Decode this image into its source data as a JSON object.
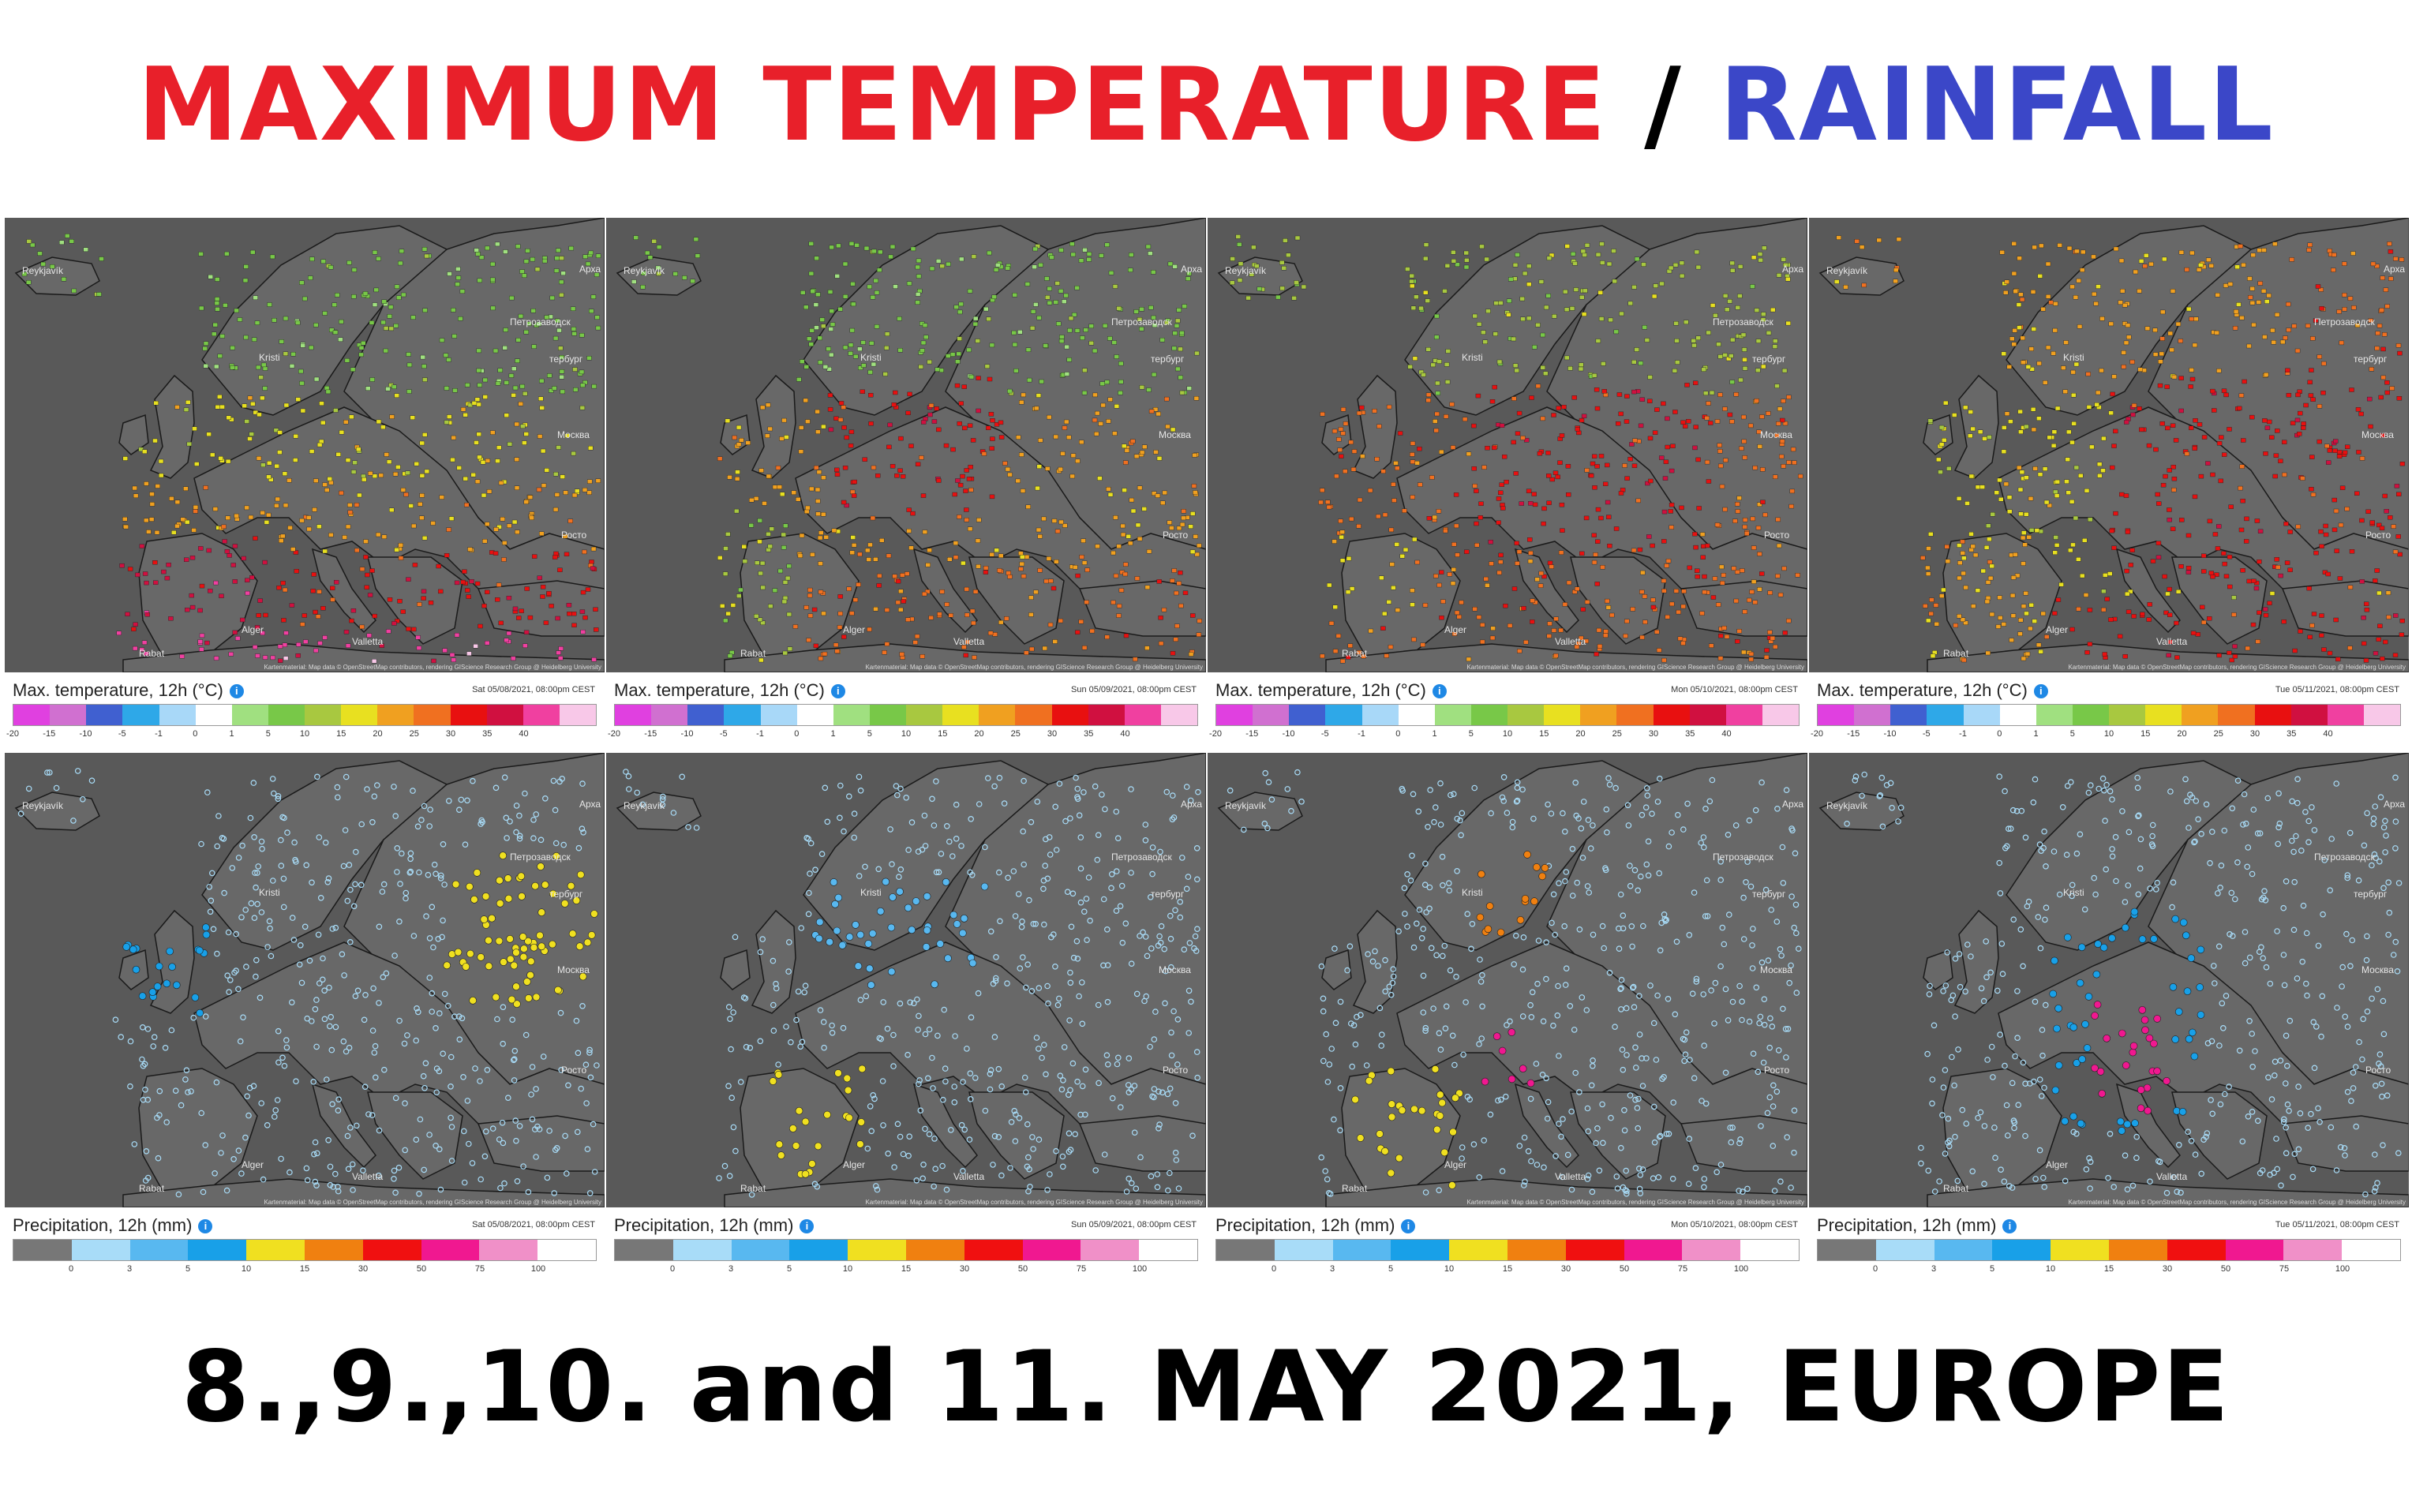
{
  "title": {
    "part1": "MAXIMUM TEMPERATURE",
    "sep": " / ",
    "part2": "RAINFALL",
    "color1": "#e8202a",
    "color_sep": "#000000",
    "color2": "#3b47c8"
  },
  "footer": "8.,9.,10. and 11. MAY 2021, EUROPE",
  "temperature": {
    "legend_title": "Max. temperature, 12h (°C)",
    "colors": [
      "#e040e0",
      "#d070d0",
      "#4060d0",
      "#2ea8e8",
      "#a8d8f8",
      "#ffffff",
      "#a0e080",
      "#78c848",
      "#a8c840",
      "#e8e020",
      "#f0a020",
      "#f07020",
      "#e81010",
      "#d01040",
      "#f040a0",
      "#f8c8e8"
    ],
    "ticks": [
      "-20",
      "-15",
      "-10",
      "-5",
      "-1",
      "0",
      "1",
      "5",
      "10",
      "15",
      "20",
      "25",
      "30",
      "35",
      "40"
    ],
    "panels": [
      {
        "date": "Sat 05/08/2021, 08:00pm CEST"
      },
      {
        "date": "Sun 05/09/2021, 08:00pm CEST"
      },
      {
        "date": "Mon 05/10/2021, 08:00pm CEST"
      },
      {
        "date": "Tue 05/11/2021, 08:00pm CEST"
      }
    ]
  },
  "precipitation": {
    "legend_title": "Precipitation, 12h (mm)",
    "colors": [
      "#777777",
      "#a8dcf8",
      "#58b8f0",
      "#18a0e8",
      "#f0e020",
      "#f08010",
      "#f01010",
      "#f01890",
      "#f090c8",
      "#ffffff"
    ],
    "ticks": [
      "0",
      "3",
      "5",
      "10",
      "15",
      "30",
      "50",
      "75",
      "100"
    ],
    "panels": [
      {
        "date": "Sat 05/08/2021, 08:00pm CEST"
      },
      {
        "date": "Sun 05/09/2021, 08:00pm CEST"
      },
      {
        "date": "Mon 05/10/2021, 08:00pm CEST"
      },
      {
        "date": "Tue 05/11/2021, 08:00pm CEST"
      }
    ]
  },
  "map_labels": {
    "reykjavik": "Reykjavík",
    "rabat": "Rabat",
    "arkh": "Арха",
    "petro": "Петрозаводск",
    "spb": "тербург",
    "moscow": "Москва",
    "rostov": "Росто",
    "valletta": "Valletta",
    "alger": "Alger",
    "kristi": "Kristi",
    "attribution": "Kartenmaterial: Map data © OpenStreetMap contributors, rendering GIScience Research Group @ Heidelberg University"
  }
}
